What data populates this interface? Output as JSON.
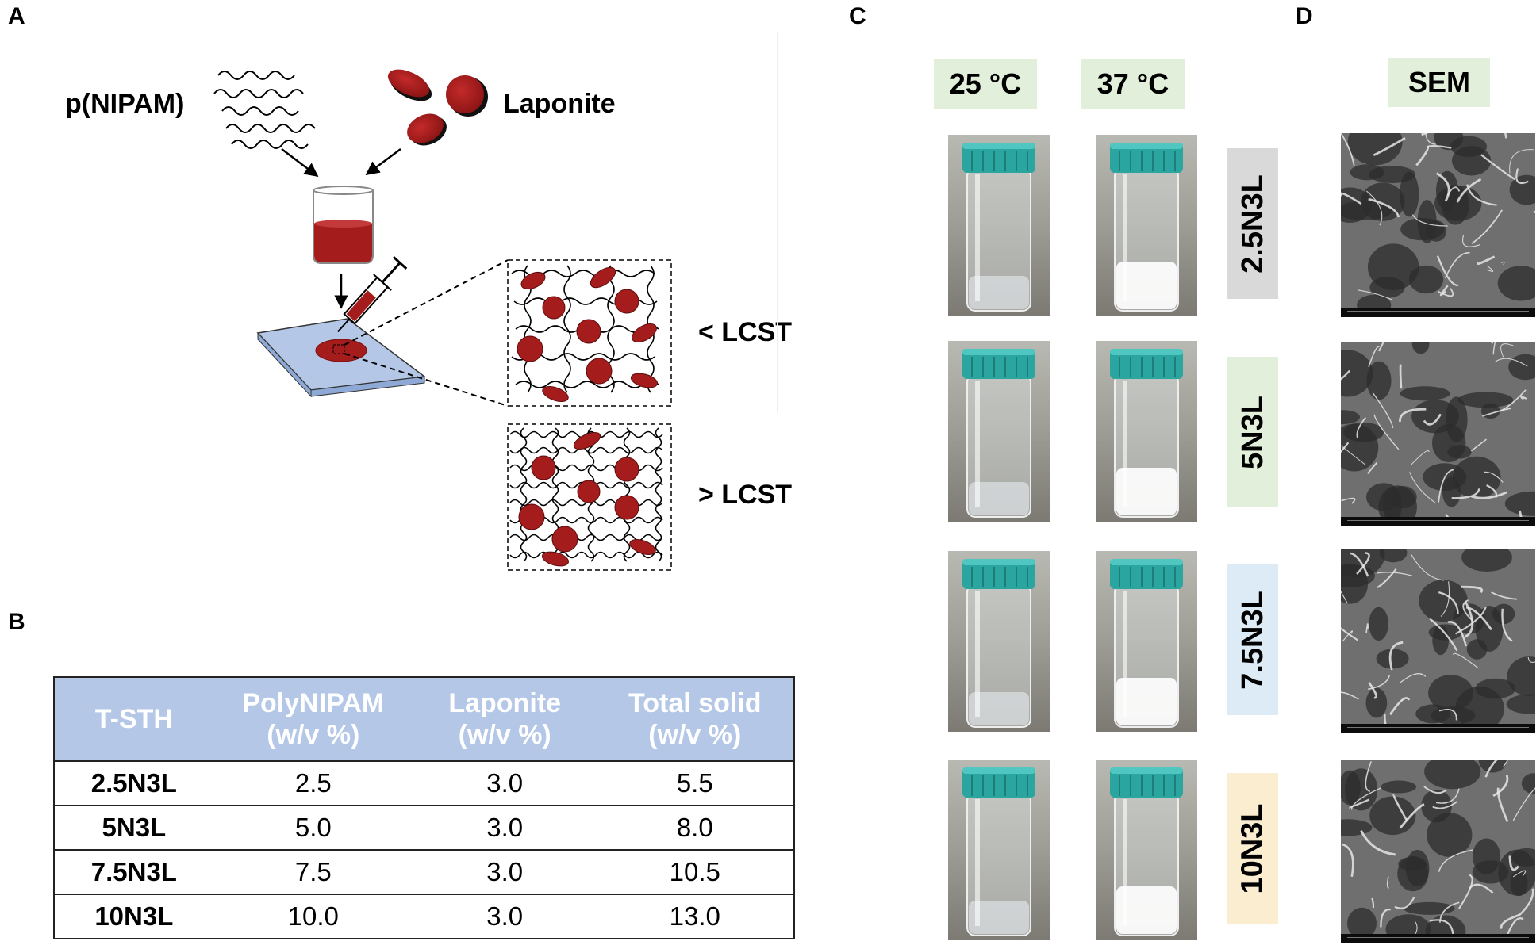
{
  "panels": {
    "a": "A",
    "b": "B",
    "c": "C",
    "d": "D"
  },
  "panel_a": {
    "polymer_label": "p(NIPAM)",
    "clay_label": "Laponite",
    "below_lcst": "< LCST",
    "above_lcst": "> LCST",
    "colors": {
      "disc": "#a51c1c",
      "slide": "#b4c7e7"
    }
  },
  "table": {
    "headers": [
      [
        "T-STH"
      ],
      [
        "PolyNIPAM",
        "(w/v %)"
      ],
      [
        "Laponite",
        "(w/v %)"
      ],
      [
        "Total solid",
        "(w/v %)"
      ]
    ],
    "rows": [
      [
        "2.5N3L",
        "2.5",
        "3.0",
        "5.5"
      ],
      [
        "5N3L",
        "5.0",
        "3.0",
        "8.0"
      ],
      [
        "7.5N3L",
        "7.5",
        "3.0",
        "10.5"
      ],
      [
        "10N3L",
        "10.0",
        "3.0",
        "13.0"
      ]
    ],
    "header_color": "#b4c7e7"
  },
  "panel_c": {
    "temp_25": "25 °C",
    "temp_37": "37 °C",
    "samples": [
      {
        "name": "2.5N3L",
        "color": "#d9d9d9"
      },
      {
        "name": "5N3L",
        "color": "#e2efda"
      },
      {
        "name": "7.5N3L",
        "color": "#ddebf7"
      },
      {
        "name": "10N3L",
        "color": "#fbeed0"
      }
    ]
  },
  "panel_d": {
    "title": "SEM"
  }
}
